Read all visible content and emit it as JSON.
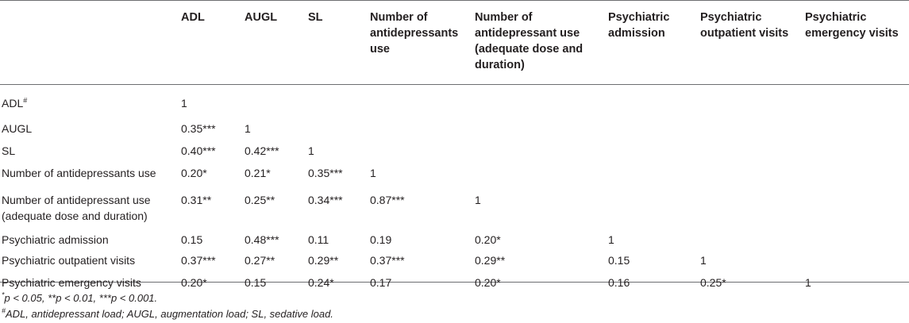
{
  "columns": [
    "ADL",
    "AUGL",
    "SL",
    "Number of antidepressants use",
    "Number of antidepressant use (adequate dose and duration)",
    "Psychiatric admission",
    "Psychiatric outpatient visits",
    "Psychiatric emergency visits"
  ],
  "rows": [
    {
      "label": "ADL",
      "label_sup": "#",
      "values": [
        "1",
        "",
        "",
        "",
        "",
        "",
        "",
        ""
      ]
    },
    {
      "label": "AUGL",
      "label_sup": "",
      "values": [
        "0.35***",
        "1",
        "",
        "",
        "",
        "",
        "",
        ""
      ]
    },
    {
      "label": "SL",
      "label_sup": "",
      "values": [
        "0.40***",
        "0.42***",
        "1",
        "",
        "",
        "",
        "",
        ""
      ]
    },
    {
      "label": "Number of antidepressants use",
      "label_sup": "",
      "values": [
        "0.20*",
        "0.21*",
        "0.35***",
        "1",
        "",
        "",
        "",
        ""
      ]
    },
    {
      "label": "Number of antidepressant use (adequate dose and duration)",
      "label_sup": "",
      "values": [
        "0.31**",
        "0.25**",
        "0.34***",
        "0.87***",
        "1",
        "",
        "",
        ""
      ]
    },
    {
      "label": "Psychiatric admission",
      "label_sup": "",
      "values": [
        "0.15",
        "0.48***",
        "0.11",
        "0.19",
        "0.20*",
        "1",
        "",
        ""
      ]
    },
    {
      "label": "Psychiatric outpatient visits",
      "label_sup": "",
      "values": [
        "0.37***",
        "0.27**",
        "0.29**",
        "0.37***",
        "0.29**",
        "0.15",
        "1",
        ""
      ]
    },
    {
      "label": "Psychiatric emergency visits",
      "label_sup": "",
      "values": [
        "0.20*",
        "0.15",
        "0.24*",
        "0.17",
        "0.20*",
        "0.16",
        "0.25*",
        "1"
      ]
    }
  ],
  "footnotes": {
    "significance_sup": "*",
    "significance": "p < 0.05, **p < 0.01, ***p < 0.001.",
    "abbrev_sup": "#",
    "abbrev": "ADL, antidepressant load; AUGL, augmentation load; SL, sedative load."
  }
}
